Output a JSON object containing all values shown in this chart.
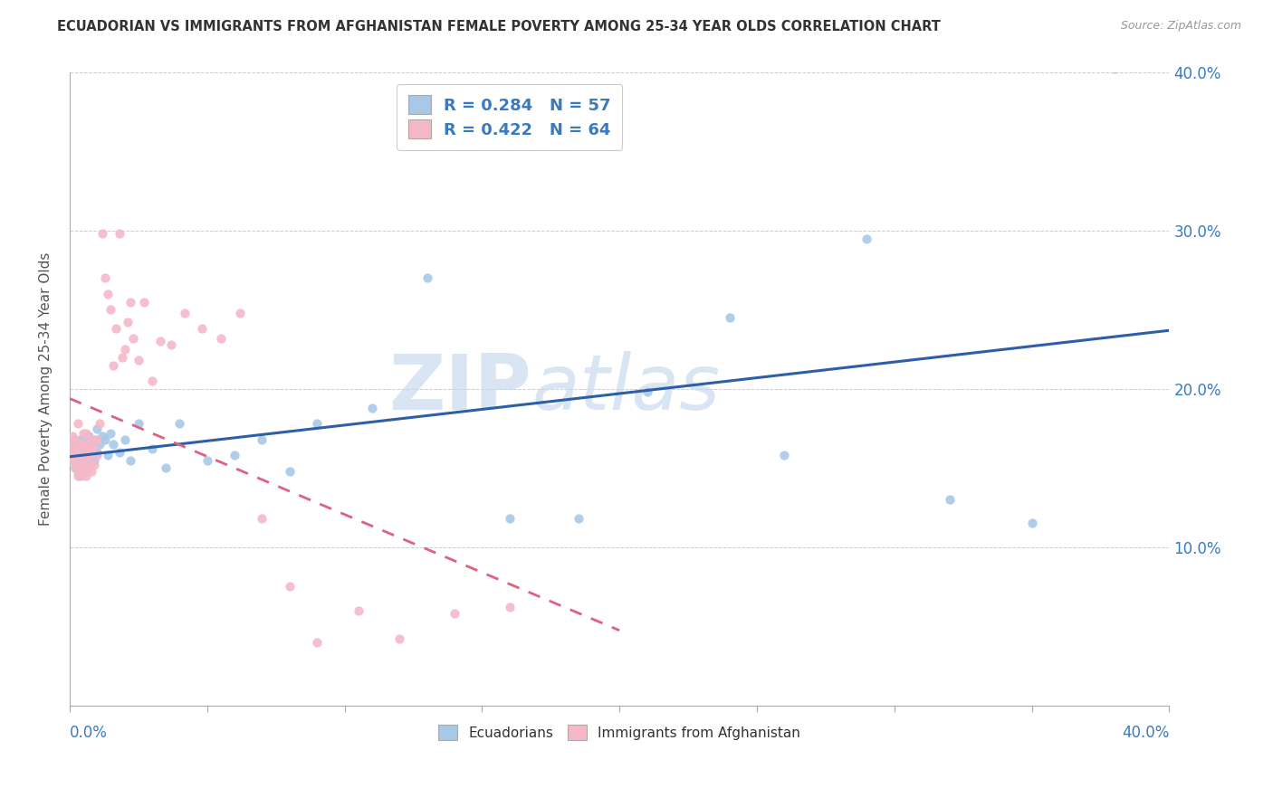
{
  "title": "ECUADORIAN VS IMMIGRANTS FROM AFGHANISTAN FEMALE POVERTY AMONG 25-34 YEAR OLDS CORRELATION CHART",
  "source": "Source: ZipAtlas.com",
  "ylabel": "Female Poverty Among 25-34 Year Olds",
  "legend_R_color": "#3a7abf",
  "ecu_color": "#a8c8e8",
  "ecu_line_color": "#2c5fa8",
  "afg_color": "#f5b8c8",
  "afg_line_color": "#e06080",
  "afg_line_dash": [
    5,
    4
  ],
  "watermark_zip_color": "#c8ddf0",
  "watermark_atlas_color": "#c8ddf0",
  "background_color": "#ffffff",
  "grid_color": "#cccccc",
  "xlim": [
    0.0,
    0.4
  ],
  "ylim": [
    0.0,
    0.4
  ],
  "ecuadorians_x": [
    0.001,
    0.001,
    0.001,
    0.002,
    0.002,
    0.002,
    0.002,
    0.003,
    0.003,
    0.003,
    0.003,
    0.004,
    0.004,
    0.004,
    0.005,
    0.005,
    0.005,
    0.006,
    0.006,
    0.006,
    0.007,
    0.007,
    0.008,
    0.008,
    0.009,
    0.009,
    0.01,
    0.01,
    0.011,
    0.012,
    0.013,
    0.014,
    0.015,
    0.016,
    0.018,
    0.02,
    0.022,
    0.025,
    0.03,
    0.035,
    0.04,
    0.05,
    0.06,
    0.07,
    0.08,
    0.09,
    0.11,
    0.13,
    0.16,
    0.185,
    0.21,
    0.24,
    0.26,
    0.29,
    0.32,
    0.35,
    0.38
  ],
  "ecuadorians_y": [
    0.155,
    0.16,
    0.165,
    0.15,
    0.155,
    0.16,
    0.165,
    0.148,
    0.152,
    0.158,
    0.162,
    0.145,
    0.155,
    0.168,
    0.15,
    0.158,
    0.162,
    0.148,
    0.155,
    0.165,
    0.152,
    0.17,
    0.158,
    0.165,
    0.155,
    0.168,
    0.16,
    0.175,
    0.165,
    0.17,
    0.168,
    0.158,
    0.172,
    0.165,
    0.16,
    0.168,
    0.155,
    0.178,
    0.162,
    0.15,
    0.178,
    0.155,
    0.158,
    0.168,
    0.148,
    0.178,
    0.188,
    0.27,
    0.118,
    0.118,
    0.198,
    0.245,
    0.158,
    0.295,
    0.13,
    0.115,
    0.402
  ],
  "afghanistan_x": [
    0.001,
    0.001,
    0.001,
    0.001,
    0.002,
    0.002,
    0.002,
    0.002,
    0.003,
    0.003,
    0.003,
    0.003,
    0.003,
    0.004,
    0.004,
    0.004,
    0.005,
    0.005,
    0.005,
    0.005,
    0.005,
    0.006,
    0.006,
    0.006,
    0.006,
    0.007,
    0.007,
    0.007,
    0.008,
    0.008,
    0.008,
    0.009,
    0.009,
    0.01,
    0.01,
    0.011,
    0.012,
    0.013,
    0.014,
    0.015,
    0.016,
    0.017,
    0.018,
    0.019,
    0.02,
    0.021,
    0.022,
    0.023,
    0.025,
    0.027,
    0.03,
    0.033,
    0.037,
    0.042,
    0.048,
    0.055,
    0.062,
    0.07,
    0.08,
    0.09,
    0.105,
    0.12,
    0.14,
    0.16
  ],
  "afghanistan_y": [
    0.155,
    0.16,
    0.165,
    0.17,
    0.15,
    0.155,
    0.16,
    0.168,
    0.145,
    0.152,
    0.158,
    0.162,
    0.178,
    0.148,
    0.155,
    0.165,
    0.148,
    0.152,
    0.158,
    0.165,
    0.172,
    0.145,
    0.155,
    0.162,
    0.172,
    0.15,
    0.158,
    0.165,
    0.148,
    0.158,
    0.168,
    0.152,
    0.162,
    0.158,
    0.168,
    0.178,
    0.298,
    0.27,
    0.26,
    0.25,
    0.215,
    0.238,
    0.298,
    0.22,
    0.225,
    0.242,
    0.255,
    0.232,
    0.218,
    0.255,
    0.205,
    0.23,
    0.228,
    0.248,
    0.238,
    0.232,
    0.248,
    0.118,
    0.075,
    0.04,
    0.06,
    0.042,
    0.058,
    0.062
  ]
}
